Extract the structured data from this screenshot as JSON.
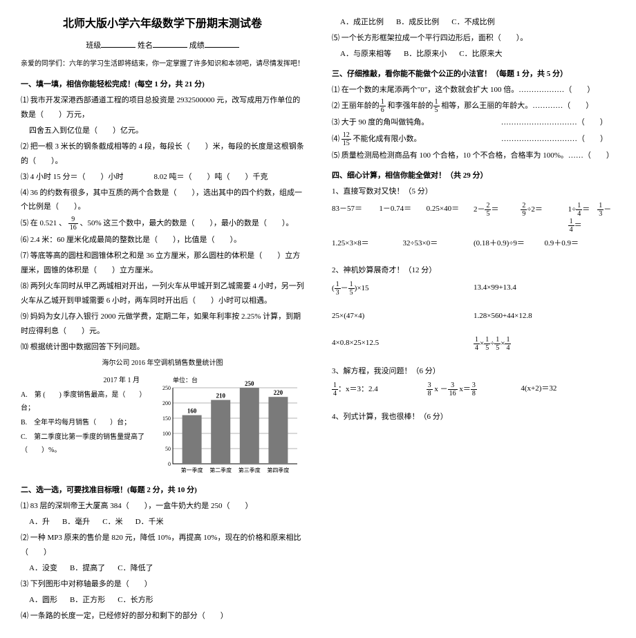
{
  "title": "北师大版小学六年级数学下册期末测试卷",
  "header": {
    "class_label": "班级",
    "name_label": "姓名",
    "score_label": "成绩"
  },
  "intro": "亲爱的同学们：六年的学习生活即将结束，你一定掌握了许多知识和本领吧，请尽情发挥吧！",
  "sec1": {
    "title": "一、填一填，相信你能轻松完成！(每空 1 分，共 21 分)",
    "q1": "⑴ 我市开发深港西部通道工程的项目总投资是 2932500000 元，改写成用万作单位的数是（　　）万元，",
    "q1b": "四舍五入到亿位是（　　）亿元。",
    "q2": "⑵ 把一根 3 米长的钢条截成相等的 4 段，每段长（　　）米，每段的长度是这根钢条的（　　）。",
    "q3a": "⑶ 4 小时 15 分＝（　　）小时",
    "q3b": "8.02 吨＝（　　）吨（　　）千克",
    "q4": "⑷ 36 的约数有很多，其中互质的两个合数是（　　），选出其中的四个约数，组成一个比例是（　　）。",
    "q5a": "⑸ 在 0.521 、",
    "q5b": "、50% 这三个数中，最大的数是（　　），最小的数是（　　）。",
    "q6": "⑹ 2.4 米：60 厘米化成最简的整数比是（　　），比值是（　　）。",
    "q7": "⑺ 等底等高的圆柱和圆锥体积之和是 36 立方厘米，那么圆柱的体积是（　　）立方厘米，圆锥的体积是（　　）立方厘米。",
    "q8": "⑻ 两列火车同时从甲乙两城相对开出，一列火车从甲城开到乙城需要 4 小时，另一列火车从乙城开到甲城需要 6 小时，两车同时开出后（　　）小时可以相遇。",
    "q9": "⑼ 妈妈为女儿存入银行 2000 元做学费，定期二年，如果年利率按 2.25% 计算，到期时应得利息（　　）元。",
    "q10": "⑽ 根据统计图中数据回答下列问题。"
  },
  "chart": {
    "title": "海尔公司 2016 年空调机销售数量统计图",
    "date": "2017 年 1 月",
    "unit": "单位：台",
    "categories": [
      "第一季度",
      "第二季度",
      "第三季度",
      "第四季度"
    ],
    "values": [
      160,
      210,
      250,
      220
    ],
    "ymax": 250,
    "ytick": 50,
    "bar_color": "#7a7a7a",
    "grid_color": "#000",
    "qa": "A.　第 (　　) 季度销售最高，是（　　）台；",
    "qb": "B.　全年平均每月销售（　　）台；",
    "qc": "C.　第二季度比第一季度的销售量提高了（　　）%。"
  },
  "sec2": {
    "title": "二、选一选，可要找准目标哦！(每题 2 分，共 10 分)",
    "q1": "⑴ 83 层的深圳帝王大厦高 384（　　），一盒牛奶大约是 250（　　）",
    "q1opts": [
      "A．升",
      "B．毫升",
      "C．米",
      "D．千米"
    ],
    "q2": "⑵ 一种 MP3 原来的售价是 820 元，降低 10%，再提高 10%，现在的价格和原来相比（　　）",
    "q2opts": [
      "A．没变",
      "B．提高了",
      "C．降低了"
    ],
    "q3": "⑶ 下列图形中对称轴最多的是（　　）",
    "q3opts": [
      "A．圆形",
      "B．正方形",
      "C．长方形"
    ],
    "q4": "⑷ 一条路的长度一定，已经修好的部分和剩下的部分（　　）",
    "q4opts": [
      "A．成正比例",
      "B．成反比例",
      "C．不成比例"
    ],
    "q5": "⑸ 一个长方形框架拉成一个平行四边形后，面积（　　）。",
    "q5opts": [
      "A．与原来相等",
      "B．比原来小",
      "C．比原来大"
    ]
  },
  "sec3": {
    "title": "三、仔细推敲，看你能不能做个公正的小法官！（每题 1 分，共 5 分）",
    "q1": "⑴ 在一个数的末尾添两个\"0\"，这个数就会扩大 100 倍。………………（　　）",
    "q2a": "⑵ 王丽年龄的",
    "q2b": "和李强年龄的",
    "q2c": "相等，那么王丽的年龄大。…………（　　）",
    "q3": "⑶ 大于 90 度的角叫做钝角。　　　　　　　　　　…………………………（　　）",
    "q4a": "⑷ ",
    "q4b": "不能化成有限小数。　　　　　　　　　　　…………………………（　　）",
    "q5": "⑸ 质量检测局检测商品有 100 个合格，10 个不合格，合格率为 100%。……（　　）"
  },
  "sec4": {
    "title": "四、细心计算，相信你能全做对！（共 29 分）",
    "sub1": "1、直接写数对又快！（5 分）",
    "r1": [
      "83－57＝",
      "1－0.74＝",
      "0.25×40＝"
    ],
    "r1b": [
      "1.25×3×8＝",
      "32÷53×0＝",
      "(0.18＋0.9)÷9＝",
      "0.9＋0.9＝"
    ],
    "sub2": "2、神机妙算展奇才！（12 分）",
    "r2a": "×15",
    "r2b": "13.4×99+13.4",
    "r2c": "25×(47×4)",
    "r2d": "1.28×560+44×12.8",
    "r2e": "4×0.8×25×12.5",
    "sub3": "3、解方程，我没问题！（6 分）",
    "r3a": "：x＝3：2.4",
    "r3c": "4(x+2)＝32",
    "sub4": "4、列式计算，我也很棒！（6 分）"
  }
}
